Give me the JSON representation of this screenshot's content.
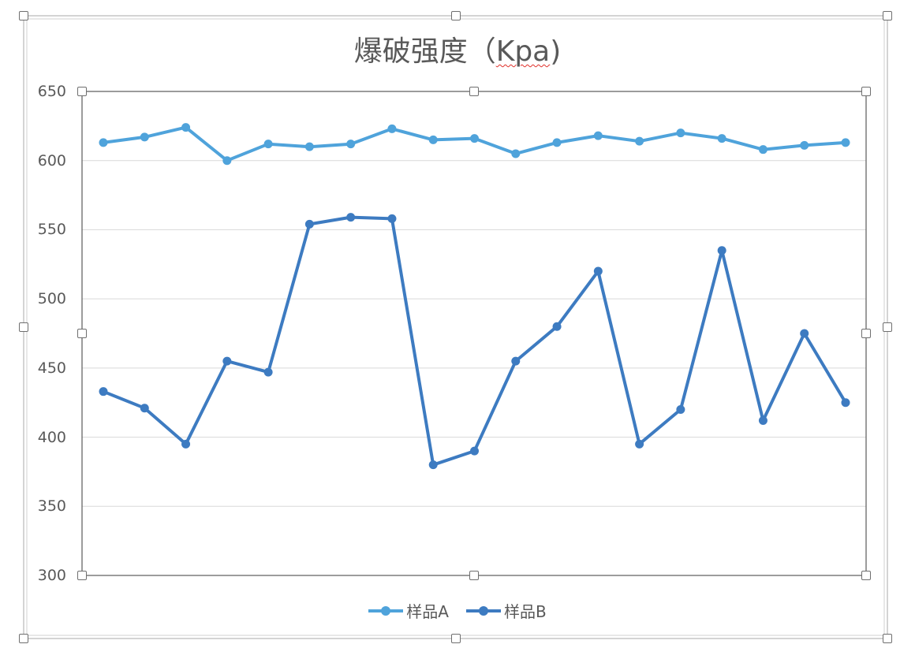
{
  "colors": {
    "series_a": "#4FA3DB",
    "series_b": "#3D7BC1",
    "grid": "#D9D9D9",
    "axis_text": "#595959",
    "plot_border": "#595959"
  },
  "chart_data": {
    "type": "line",
    "title_main": "爆破强度（",
    "title_unit": "Kpa",
    "title_close": ")",
    "ylim": [
      300,
      650
    ],
    "yticks": [
      "650",
      "600",
      "550",
      "500",
      "450",
      "400",
      "350",
      "300"
    ],
    "x_count": 19,
    "grid": true,
    "legend_position": "bottom",
    "series": [
      {
        "name": "样品A",
        "values": [
          613,
          617,
          624,
          600,
          612,
          610,
          612,
          623,
          615,
          616,
          605,
          613,
          618,
          614,
          620,
          616,
          608,
          611,
          613
        ]
      },
      {
        "name": "样品B",
        "values": [
          433,
          421,
          395,
          455,
          447,
          554,
          559,
          558,
          380,
          390,
          455,
          480,
          520,
          395,
          420,
          535,
          412,
          475,
          425
        ]
      }
    ]
  }
}
